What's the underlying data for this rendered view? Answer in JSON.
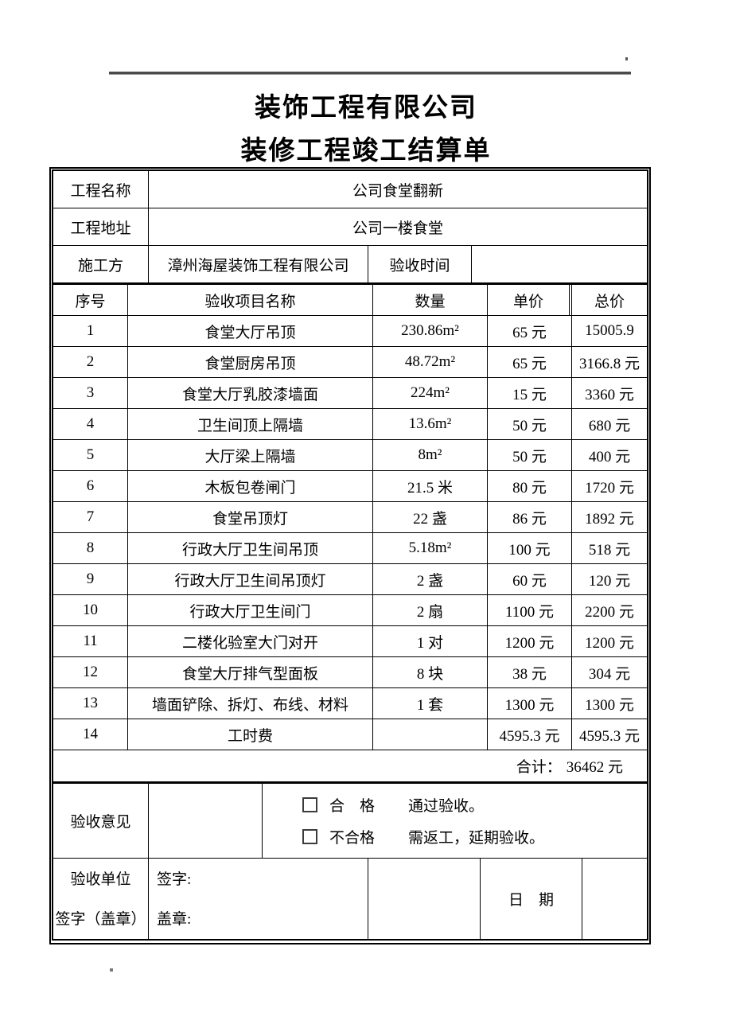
{
  "page": {
    "title_line1": "装饰工程有限公司",
    "title_line2": "装修工程竣工结算单"
  },
  "colors": {
    "text": "#000000",
    "border": "#000000",
    "top_rule": "#4a4a4a"
  },
  "info": {
    "project_name_label": "工程名称",
    "project_name_value": "公司食堂翻新",
    "address_label": "工程地址",
    "address_value": "公司一楼食堂",
    "contractor_label": "施工方",
    "contractor_value": "漳州海屋装饰工程有限公司",
    "acceptance_time_label": "验收时间",
    "acceptance_time_value": ""
  },
  "table": {
    "headers": {
      "no": "序号",
      "name": "验收项目名称",
      "qty": "数量",
      "unit": "单价",
      "total": "总价"
    },
    "rows": [
      {
        "no": "1",
        "name": "食堂大厅吊顶",
        "qty": "230.86m²",
        "unit": "65 元",
        "total": "15005.9"
      },
      {
        "no": "2",
        "name": "食堂厨房吊顶",
        "qty": "48.72m²",
        "unit": "65 元",
        "total": "3166.8 元"
      },
      {
        "no": "3",
        "name": "食堂大厅乳胶漆墙面",
        "qty": "224m²",
        "unit": "15 元",
        "total": "3360 元"
      },
      {
        "no": "4",
        "name": "卫生间顶上隔墙",
        "qty": "13.6m²",
        "unit": "50 元",
        "total": "680 元"
      },
      {
        "no": "5",
        "name": "大厅梁上隔墙",
        "qty": "8m²",
        "unit": "50 元",
        "total": "400 元"
      },
      {
        "no": "6",
        "name": "木板包卷闸门",
        "qty": "21.5 米",
        "unit": "80 元",
        "total": "1720 元"
      },
      {
        "no": "7",
        "name": "食堂吊顶灯",
        "qty": "22 盏",
        "unit": "86 元",
        "total": "1892 元"
      },
      {
        "no": "8",
        "name": "行政大厅卫生间吊顶",
        "qty": "5.18m²",
        "unit": "100 元",
        "total": "518 元"
      },
      {
        "no": "9",
        "name": "行政大厅卫生间吊顶灯",
        "qty": "2 盏",
        "unit": "60 元",
        "total": "120 元"
      },
      {
        "no": "10",
        "name": "行政大厅卫生间门",
        "qty": "2 扇",
        "unit": "1100 元",
        "total": "2200 元"
      },
      {
        "no": "11",
        "name": "二楼化验室大门对开",
        "qty": "1 对",
        "unit": "1200 元",
        "total": "1200 元"
      },
      {
        "no": "12",
        "name": "食堂大厅排气型面板",
        "qty": "8 块",
        "unit": "38 元",
        "total": "304 元"
      },
      {
        "no": "13",
        "name": "墙面铲除、拆灯、布线、材料",
        "qty": "1 套",
        "unit": "1300 元",
        "total": "1300 元"
      },
      {
        "no": "14",
        "name": "工时费",
        "qty": "",
        "unit": "4595.3 元",
        "total": "4595.3 元"
      }
    ],
    "total": {
      "label": "合计：",
      "value": "36462 元"
    }
  },
  "acceptance": {
    "opinion_label": "验收意见",
    "options": [
      {
        "label": "合　格",
        "desc": "通过验收。"
      },
      {
        "label": "不合格",
        "desc": "需返工，延期验收。"
      }
    ]
  },
  "signature": {
    "unit_label_line1": "验收单位",
    "unit_label_line2": "签字（盖章）",
    "sign_label": "签字:",
    "seal_label": "盖章:",
    "date_label": "日　期"
  }
}
